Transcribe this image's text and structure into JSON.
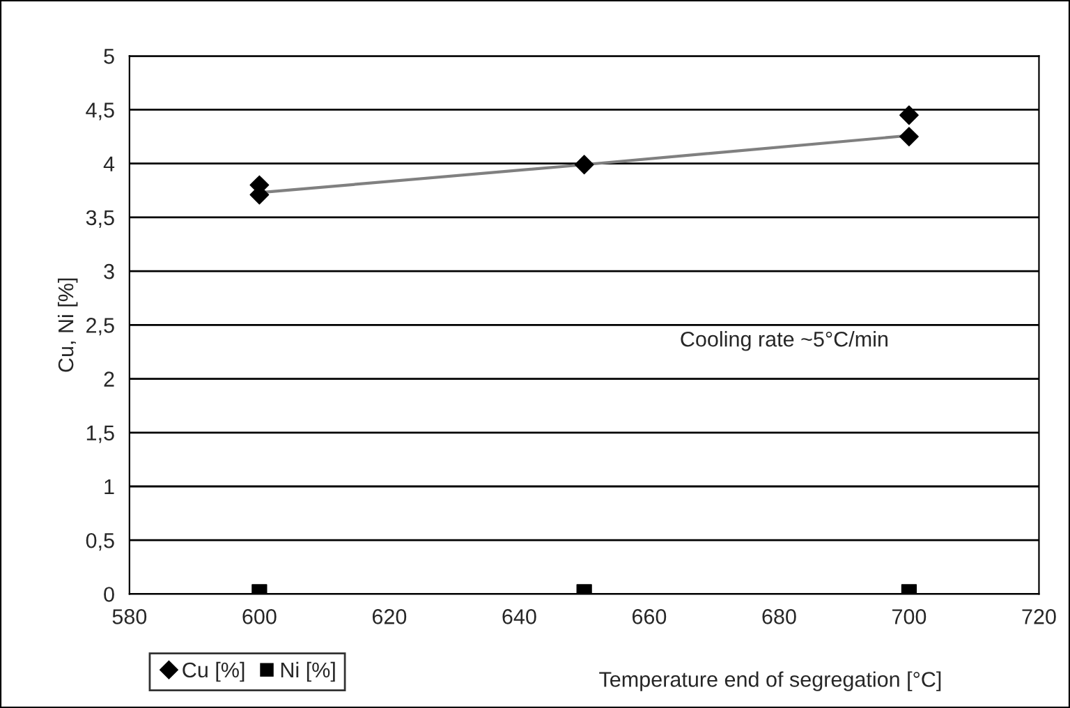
{
  "chart_data": {
    "type": "scatter",
    "xlabel": "Temperature end of segregation [°C]",
    "ylabel": "Cu, Ni [%]",
    "annotations": [
      "Cooling rate ~5°C/min"
    ],
    "series": [
      {
        "name": "Cu [%]",
        "color": "#000000",
        "marker": "diamond",
        "x": [
          600,
          600,
          650,
          700,
          700
        ],
        "values": [
          3.8,
          3.71,
          3.99,
          4.45,
          4.25
        ]
      },
      {
        "name": "Ni [%]",
        "color": "#000000",
        "marker": "square",
        "x": [
          600,
          650,
          700
        ],
        "values": [
          0.02,
          0.02,
          0.02
        ]
      },
      {
        "type": "line",
        "color": "#808080",
        "marker": "none",
        "x": [
          600,
          650,
          700
        ],
        "values": [
          3.73,
          3.99,
          4.26
        ]
      }
    ],
    "xlim": [
      580,
      720
    ],
    "xticks": [
      580,
      600,
      620,
      640,
      660,
      680,
      700,
      720
    ],
    "ylim": [
      0,
      5
    ],
    "yticks": [
      0,
      {
        "value": 0.5,
        "label": "0,5"
      },
      1,
      {
        "value": 1.5,
        "label": "1,5"
      },
      2,
      {
        "value": 2.5,
        "label": "2,5"
      },
      3,
      {
        "value": 3.5,
        "label": "3,5"
      },
      4,
      {
        "value": 4.5,
        "label": "4,5"
      },
      5
    ],
    "grid": "y",
    "legend": "bottom left"
  }
}
